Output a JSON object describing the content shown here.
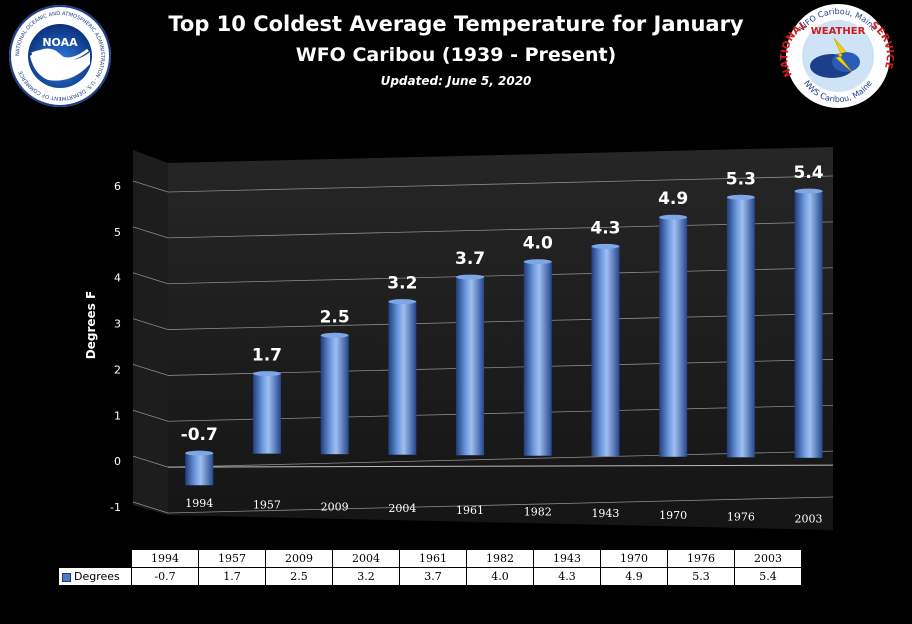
{
  "title": "Top 10 Coldest Average Temperature for January",
  "subtitle": "WFO Caribou (1939 - Present)",
  "updated": "Updated: June 5, 2020",
  "logos": {
    "noaa": {
      "text": "NOAA",
      "ring": "NATIONAL OCEANIC AND ATMOSPHERIC ADMINISTRATION · U.S. DEPARTMENT OF COMMERCE"
    },
    "nws": {
      "top": "WFO Caribou, Maine",
      "word1": "NATIONAL",
      "word2": "WEATHER",
      "word3": "SERVICE",
      "bottom": "NWS Caribou, Maine"
    }
  },
  "chart_data": {
    "type": "bar",
    "ylabel": "Degrees F",
    "ylim": [
      -1,
      6
    ],
    "yticks": [
      -1,
      0,
      1,
      2,
      3,
      4,
      5,
      6
    ],
    "categories": [
      "1994",
      "1957",
      "2009",
      "2004",
      "1961",
      "1982",
      "1943",
      "1970",
      "1976",
      "2003"
    ],
    "series": [
      {
        "name": "Degrees",
        "values": [
          -0.7,
          1.7,
          2.5,
          3.2,
          3.7,
          4.0,
          4.3,
          4.9,
          5.3,
          5.4
        ],
        "labels": [
          "-0.7",
          "1.7",
          "2.5",
          "3.2",
          "3.7",
          "4.0",
          "4.3",
          "4.9",
          "5.3",
          "5.4"
        ]
      }
    ],
    "grid": true,
    "colors": {
      "bar": "#4f79c3",
      "bar_dark": "#1f3d7a",
      "bar_light": "#9fbff0",
      "wall": "#262626"
    }
  }
}
